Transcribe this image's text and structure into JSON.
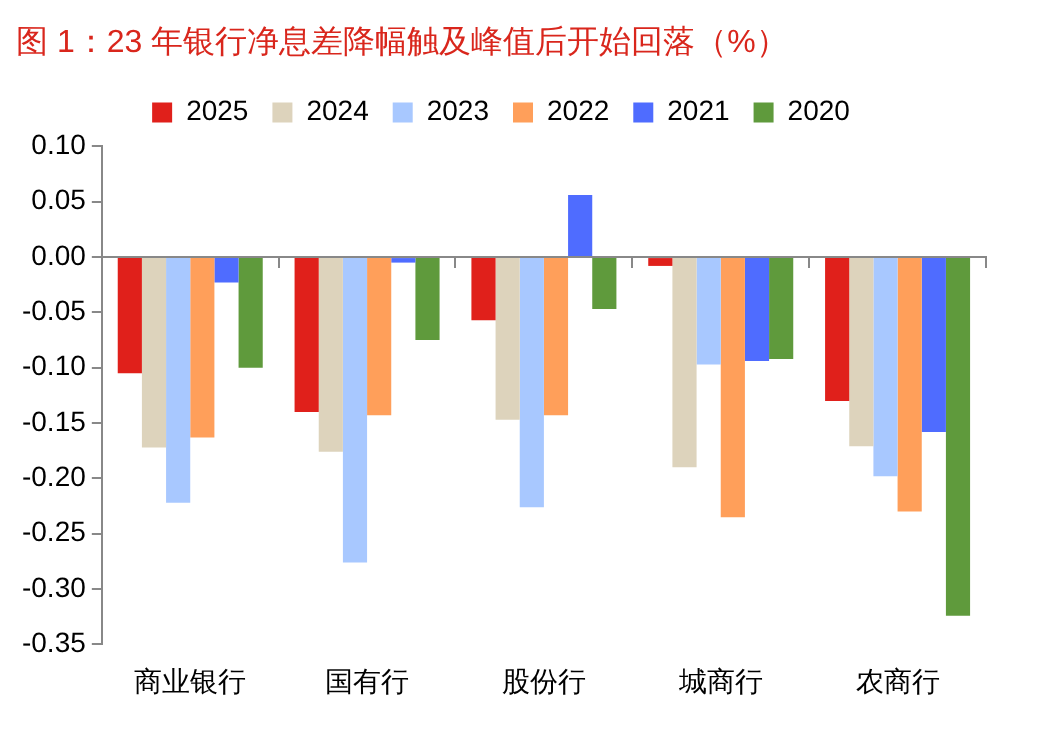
{
  "chart_data": {
    "type": "bar",
    "title": "图 1：23 年银行净息差降幅触及峰值后开始回落（%）",
    "categories": [
      "商业银行",
      "国有行",
      "股份行",
      "城商行",
      "农商行"
    ],
    "series": [
      {
        "name": "2025",
        "color": "#e0201b",
        "values": [
          -0.105,
          -0.14,
          -0.057,
          -0.008,
          -0.13
        ]
      },
      {
        "name": "2024",
        "color": "#ddd3bc",
        "values": [
          -0.172,
          -0.176,
          -0.147,
          -0.19,
          -0.171
        ]
      },
      {
        "name": "2023",
        "color": "#a8c8ff",
        "values": [
          -0.222,
          -0.276,
          -0.226,
          -0.097,
          -0.198
        ]
      },
      {
        "name": "2022",
        "color": "#ff9f5a",
        "values": [
          -0.163,
          -0.143,
          -0.143,
          -0.235,
          -0.23
        ]
      },
      {
        "name": "2021",
        "color": "#4f6cff",
        "values": [
          -0.023,
          -0.005,
          0.056,
          -0.094,
          -0.158
        ]
      },
      {
        "name": "2020",
        "color": "#5f9a3c",
        "values": [
          -0.1,
          -0.075,
          -0.047,
          -0.092,
          -0.324
        ]
      }
    ],
    "ylim": [
      -0.35,
      0.1
    ],
    "yticks": [
      {
        "value": -0.35,
        "label": "-0.35"
      },
      {
        "value": -0.3,
        "label": "-0.30"
      },
      {
        "value": -0.25,
        "label": "-0.25"
      },
      {
        "value": -0.2,
        "label": "-0.20"
      },
      {
        "value": -0.15,
        "label": "-0.15"
      },
      {
        "value": -0.1,
        "label": "-0.10"
      },
      {
        "value": -0.05,
        "label": "-0.05"
      },
      {
        "value": 0,
        "label": "0.00"
      },
      {
        "value": 0.05,
        "label": "0.05"
      },
      {
        "value": 0.1,
        "label": "0.10"
      }
    ],
    "legend": "top"
  }
}
